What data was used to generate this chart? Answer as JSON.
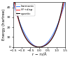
{
  "title": "",
  "xlabel": "r − r₀/Å",
  "ylabel": "Energy (hartree)",
  "xlim": [
    -1.5,
    1.5
  ],
  "ylim": [
    0,
    45
  ],
  "legend_labels": [
    "harmonic",
    "HF+disp",
    "quartic"
  ],
  "curve_colors": [
    "#4488ff",
    "#ff3333",
    "#111111"
  ],
  "curve_styles": [
    "-",
    "-",
    "-"
  ],
  "background_color": "#ffffff",
  "xticks": [
    -1.5,
    -1.0,
    -0.5,
    0.0,
    0.5,
    1.0,
    1.5
  ],
  "yticks": [
    0,
    10,
    20,
    30,
    40
  ],
  "harmonic_a": 20.0,
  "quartic_a": 12.0,
  "quartic_b": 6.0,
  "hfdisp_a": 14.0,
  "hfdisp_b": 4.0,
  "font_size": 4.0,
  "tick_fontsize": 3.2,
  "lw": 0.75
}
